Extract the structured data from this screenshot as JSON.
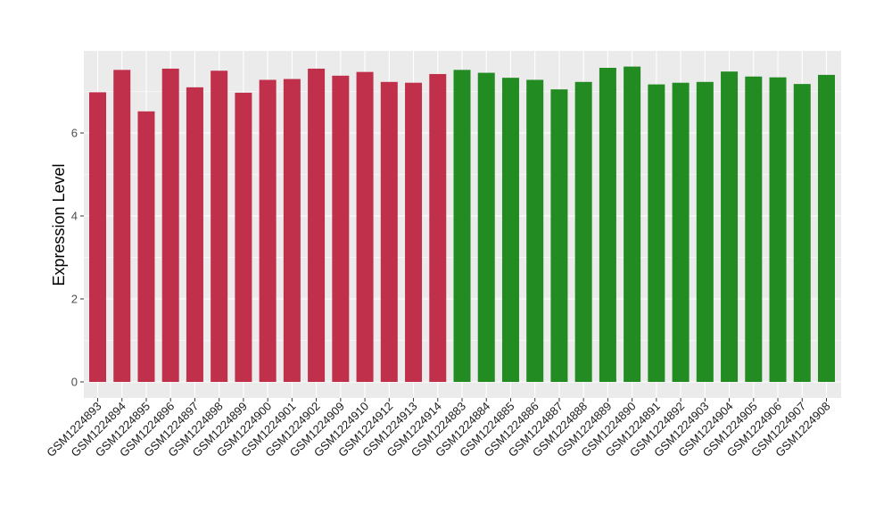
{
  "chart_data": {
    "type": "bar",
    "ylabel": "Expression Level",
    "xlabel": "",
    "ylim": [
      0,
      8
    ],
    "yticks": [
      0,
      2,
      4,
      6
    ],
    "grid": true,
    "colors": {
      "group1": "#c0304a",
      "group2": "#228b22",
      "panel": "#ebebeb",
      "grid": "#ffffff"
    },
    "categories": [
      "GSM1224893",
      "GSM1224894",
      "GSM1224895",
      "GSM1224896",
      "GSM1224897",
      "GSM1224898",
      "GSM1224899",
      "GSM1224900",
      "GSM1224901",
      "GSM1224902",
      "GSM1224909",
      "GSM1224910",
      "GSM1224912",
      "GSM1224913",
      "GSM1224914",
      "GSM1224883",
      "GSM1224884",
      "GSM1224885",
      "GSM1224886",
      "GSM1224887",
      "GSM1224888",
      "GSM1224889",
      "GSM1224890",
      "GSM1224891",
      "GSM1224892",
      "GSM1224903",
      "GSM1224904",
      "GSM1224905",
      "GSM1224906",
      "GSM1224907",
      "GSM1224908"
    ],
    "values": [
      6.98,
      7.52,
      6.52,
      7.55,
      7.1,
      7.5,
      6.97,
      7.28,
      7.3,
      7.55,
      7.38,
      7.47,
      7.23,
      7.21,
      7.42,
      7.52,
      7.45,
      7.33,
      7.28,
      7.05,
      7.23,
      7.57,
      7.6,
      7.17,
      7.21,
      7.23,
      7.48,
      7.36,
      7.34,
      7.18,
      7.4
    ],
    "groups": [
      "group1",
      "group1",
      "group1",
      "group1",
      "group1",
      "group1",
      "group1",
      "group1",
      "group1",
      "group1",
      "group1",
      "group1",
      "group1",
      "group1",
      "group1",
      "group2",
      "group2",
      "group2",
      "group2",
      "group2",
      "group2",
      "group2",
      "group2",
      "group2",
      "group2",
      "group2",
      "group2",
      "group2",
      "group2",
      "group2",
      "group2"
    ]
  }
}
